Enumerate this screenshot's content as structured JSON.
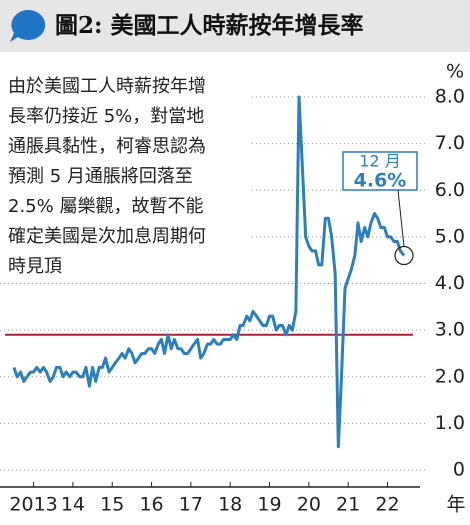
{
  "chart_data": {
    "type": "line",
    "title": "圖2: 美國工人時薪按年增長率",
    "y_label": "%",
    "x_label": "年",
    "note_lines": [
      "由於美國工人時薪按年增",
      "長率仍接近 5%，對當地",
      "通脹具黏性，柯睿思認為",
      "預測 5 月通脹將回落至",
      "2.5% 屬樂觀，故暫不能",
      "確定美國是次加息周期何",
      "時見頂"
    ],
    "annotation": {
      "text": "12 月",
      "label": "4.6%"
    },
    "reference_line": 2.9,
    "reference_color": "#a3243b",
    "grid": true,
    "xlim": [
      2012.9,
      2023.2
    ],
    "ylim": [
      0,
      8
    ],
    "yticks": [
      0,
      {
        "value": 1,
        "label": "1.0"
      },
      {
        "value": 2,
        "label": "2.0"
      },
      {
        "value": 3,
        "label": "3.0"
      },
      {
        "value": 4,
        "label": "4.0"
      },
      {
        "value": 5,
        "label": "5.0"
      },
      {
        "value": 6,
        "label": "6.0"
      },
      {
        "value": 7,
        "label": "7.0"
      },
      {
        "value": 8,
        "label": "8.0"
      }
    ],
    "xticks": [
      {
        "value": 2013.5,
        "label": "2013"
      },
      {
        "value": 2014.5,
        "label": "14"
      },
      {
        "value": 2015.5,
        "label": "15"
      },
      {
        "value": 2016.5,
        "label": "16"
      },
      {
        "value": 2017.5,
        "label": "17"
      },
      {
        "value": 2018.5,
        "label": "18"
      },
      {
        "value": 2019.5,
        "label": "19"
      },
      {
        "value": 2020.5,
        "label": "20"
      },
      {
        "value": 2021.5,
        "label": "21"
      },
      {
        "value": 2022.5,
        "label": "22"
      }
    ],
    "x": [
      2013.0,
      2013.08,
      2013.17,
      2013.25,
      2013.33,
      2013.42,
      2013.5,
      2013.58,
      2013.67,
      2013.75,
      2013.83,
      2013.92,
      2014.0,
      2014.08,
      2014.17,
      2014.25,
      2014.33,
      2014.42,
      2014.5,
      2014.58,
      2014.67,
      2014.75,
      2014.83,
      2014.92,
      2015.0,
      2015.08,
      2015.17,
      2015.25,
      2015.33,
      2015.42,
      2015.5,
      2015.58,
      2015.67,
      2015.75,
      2015.83,
      2015.92,
      2016.0,
      2016.08,
      2016.17,
      2016.25,
      2016.33,
      2016.42,
      2016.5,
      2016.58,
      2016.67,
      2016.75,
      2016.83,
      2016.92,
      2017.0,
      2017.08,
      2017.17,
      2017.25,
      2017.33,
      2017.42,
      2017.5,
      2017.58,
      2017.67,
      2017.75,
      2017.83,
      2017.92,
      2018.0,
      2018.08,
      2018.17,
      2018.25,
      2018.33,
      2018.42,
      2018.5,
      2018.58,
      2018.67,
      2018.75,
      2018.83,
      2018.92,
      2019.0,
      2019.08,
      2019.17,
      2019.25,
      2019.33,
      2019.42,
      2019.5,
      2019.58,
      2019.67,
      2019.75,
      2019.83,
      2019.92,
      2020.0,
      2020.08,
      2020.17,
      2020.25,
      2020.33,
      2020.42,
      2020.5,
      2020.58,
      2020.67,
      2020.75,
      2020.83,
      2020.92,
      2021.0,
      2021.08,
      2021.17,
      2021.25,
      2021.33,
      2021.42,
      2021.5,
      2021.58,
      2021.67,
      2021.75,
      2021.83,
      2021.92,
      2022.0,
      2022.08,
      2022.17,
      2022.25,
      2022.33,
      2022.42,
      2022.5,
      2022.58,
      2022.67,
      2022.75,
      2022.83,
      2022.92
    ],
    "series": [
      {
        "color": "#2a7fc1",
        "values": [
          2.2,
          2.0,
          2.1,
          1.9,
          2.0,
          2.1,
          2.1,
          2.2,
          2.1,
          2.2,
          2.1,
          1.9,
          2.0,
          2.2,
          2.2,
          2.0,
          2.1,
          2.0,
          2.1,
          2.1,
          2.0,
          2.0,
          2.2,
          1.8,
          2.2,
          1.9,
          2.2,
          2.2,
          2.4,
          2.1,
          2.2,
          2.3,
          2.4,
          2.5,
          2.4,
          2.6,
          2.5,
          2.3,
          2.4,
          2.5,
          2.5,
          2.6,
          2.6,
          2.5,
          2.7,
          2.8,
          2.5,
          2.9,
          2.6,
          2.8,
          2.6,
          2.6,
          2.5,
          2.5,
          2.6,
          2.7,
          2.8,
          2.4,
          2.5,
          2.7,
          2.7,
          2.8,
          2.7,
          2.7,
          2.8,
          2.8,
          2.8,
          2.9,
          2.8,
          3.1,
          3.1,
          3.3,
          3.2,
          3.4,
          3.3,
          3.2,
          3.1,
          3.1,
          3.3,
          3.3,
          3.0,
          3.1,
          3.1,
          2.9,
          3.1,
          3.0,
          3.4,
          8.0,
          6.6,
          5.0,
          4.8,
          4.7,
          4.7,
          4.4,
          4.4,
          5.4,
          5.4,
          5.0,
          4.2,
          0.5,
          2.0,
          3.9,
          4.1,
          4.3,
          4.6,
          5.3,
          4.9,
          5.2,
          5.0,
          5.3,
          5.5,
          5.4,
          5.2,
          5.2,
          5.0,
          5.0,
          4.9,
          4.9,
          4.7,
          4.6
        ]
      }
    ]
  }
}
